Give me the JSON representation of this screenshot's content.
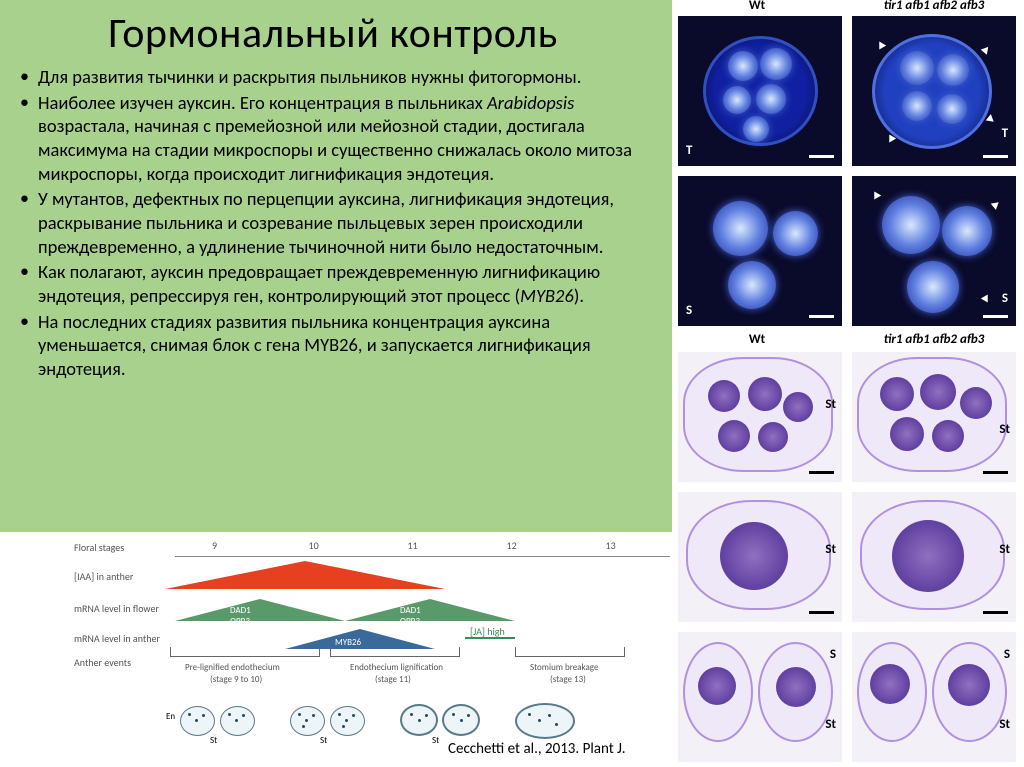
{
  "title": "Гормональный контроль",
  "bullets": [
    "Для развития тычинки и раскрытия пыльников нужны фитогормоны.",
    "Наиболее изучен ауксин. Его концентрация в пыльниках <span class=\"italic\">Arabidopsis</span> возрастала, начиная с премейозной или мейозной стадии, достигала максимума на стадии микроспоры и существенно снижалась около митоза микроспоры, когда происходит лигнификация эндотеция.",
    "У мутантов, дефектных по перцепции ауксина, лигнификация эндотеция, раскрывание пыльника и созревание пыльцевых зерен происходили преждевременно, а удлинение тычиночной нити было недостаточным.",
    "Как полагают, ауксин предовращает преждевременную лигнификацию эндотеция, репрессируя ген, контролирующий этот процесс (<span class=\"italic\">MYB26</span>).",
    "На последних стадиях развития пыльника концентрация ауксина уменьшается, снимая блок с гена MYB26, и запускается лигнификация эндотеция."
  ],
  "citation": "Cecchetti et al., 2013. Plant J.",
  "diagram": {
    "rows": [
      "Floral stages",
      "[IAA] in anther",
      "mRNA level in flower",
      "mRNA level in anther",
      "Anther events"
    ],
    "ticks": [
      "9",
      "10",
      "11",
      "12",
      "13"
    ],
    "iaa_color": "#e64020",
    "dad_color": "#5a9a6a",
    "myb_color": "#3a6a9a",
    "dad_label": "DAD1\nOPR3",
    "myb_label": "MYB26",
    "ja_label": "[JA] high",
    "events": [
      {
        "label": "Pre-lignified endothecium",
        "sub": "(stage 9 to 10)"
      },
      {
        "label": "Endothecium lignification",
        "sub": "(stage 11)"
      },
      {
        "label": "Stomium breakage",
        "sub": "(stage 13)"
      }
    ],
    "cell_labels": {
      "en": "En",
      "st": "St"
    }
  },
  "right_images": {
    "top_labels": {
      "wt": "Wt",
      "mutant": "tir1 afb1 afb2 afb3"
    },
    "annotations": {
      "t": "T",
      "s": "S",
      "st": "St"
    },
    "colors": {
      "fluor_bg": "#0a0a2a",
      "fluor_glow": "#4060d0",
      "light_bg": "#f4f0f8",
      "purple": "#7050b0"
    }
  }
}
